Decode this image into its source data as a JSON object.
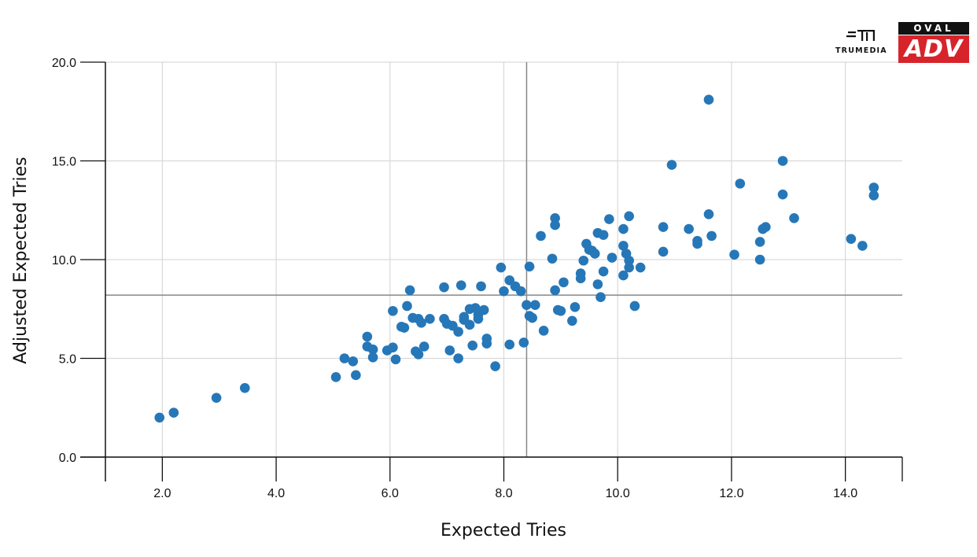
{
  "logos": {
    "trumedia": "TRUMEDIA",
    "oval_top": "OVAL",
    "oval_bottom": "ADV"
  },
  "colors": {
    "point": "#2677b8",
    "grid": "#d9d9d9",
    "reference_line": "#888888",
    "axis": "#111111",
    "adv_red": "#d7242b"
  },
  "chart_data": {
    "type": "scatter",
    "xlabel": "Expected Tries",
    "ylabel": "Adjusted Expected Tries",
    "xlim": [
      1.0,
      15.0
    ],
    "ylim": [
      0.0,
      20.0
    ],
    "x_ticks": [
      "2.0",
      "4.0",
      "6.0",
      "8.0",
      "10.0",
      "12.0",
      "14.0"
    ],
    "y_ticks": [
      "0.0",
      "5.0",
      "10.0",
      "15.0",
      "20.0"
    ],
    "grid": true,
    "reference_lines": {
      "x": 8.4,
      "y": 8.2
    },
    "points": [
      [
        1.95,
        2.0
      ],
      [
        2.2,
        2.25
      ],
      [
        2.95,
        3.0
      ],
      [
        3.45,
        3.5
      ],
      [
        5.05,
        4.05
      ],
      [
        5.2,
        5.0
      ],
      [
        5.35,
        4.85
      ],
      [
        5.4,
        4.15
      ],
      [
        5.6,
        6.1
      ],
      [
        5.6,
        5.6
      ],
      [
        5.7,
        5.05
      ],
      [
        5.7,
        5.45
      ],
      [
        5.95,
        5.4
      ],
      [
        6.05,
        5.55
      ],
      [
        6.05,
        7.4
      ],
      [
        6.1,
        4.95
      ],
      [
        6.2,
        6.6
      ],
      [
        6.25,
        6.55
      ],
      [
        6.3,
        7.65
      ],
      [
        6.35,
        8.45
      ],
      [
        6.4,
        7.05
      ],
      [
        6.45,
        5.35
      ],
      [
        6.5,
        5.2
      ],
      [
        6.5,
        7.0
      ],
      [
        6.55,
        6.8
      ],
      [
        6.6,
        5.6
      ],
      [
        6.7,
        7.0
      ],
      [
        6.95,
        7.0
      ],
      [
        6.95,
        8.6
      ],
      [
        7.0,
        6.75
      ],
      [
        7.05,
        5.4
      ],
      [
        7.1,
        6.65
      ],
      [
        7.2,
        5.0
      ],
      [
        7.2,
        6.35
      ],
      [
        7.25,
        8.7
      ],
      [
        7.3,
        6.95
      ],
      [
        7.3,
        7.1
      ],
      [
        7.4,
        7.5
      ],
      [
        7.4,
        6.7
      ],
      [
        7.45,
        5.65
      ],
      [
        7.5,
        7.55
      ],
      [
        7.55,
        7.0
      ],
      [
        7.55,
        7.2
      ],
      [
        7.6,
        8.65
      ],
      [
        7.65,
        7.45
      ],
      [
        7.7,
        5.75
      ],
      [
        7.7,
        6.0
      ],
      [
        7.85,
        4.6
      ],
      [
        7.95,
        9.6
      ],
      [
        8.0,
        8.4
      ],
      [
        8.1,
        8.95
      ],
      [
        8.1,
        5.7
      ],
      [
        8.2,
        8.65
      ],
      [
        8.3,
        8.4
      ],
      [
        8.35,
        5.8
      ],
      [
        8.45,
        9.65
      ],
      [
        8.4,
        7.7
      ],
      [
        8.45,
        7.15
      ],
      [
        8.5,
        7.05
      ],
      [
        8.55,
        7.7
      ],
      [
        8.65,
        11.2
      ],
      [
        8.7,
        6.4
      ],
      [
        8.85,
        10.05
      ],
      [
        8.9,
        11.75
      ],
      [
        8.9,
        12.1
      ],
      [
        8.9,
        8.45
      ],
      [
        8.95,
        7.45
      ],
      [
        9.0,
        7.4
      ],
      [
        9.05,
        8.85
      ],
      [
        9.2,
        6.9
      ],
      [
        9.25,
        7.6
      ],
      [
        9.35,
        9.3
      ],
      [
        9.35,
        9.05
      ],
      [
        9.4,
        9.95
      ],
      [
        9.45,
        10.8
      ],
      [
        9.5,
        10.5
      ],
      [
        9.55,
        10.45
      ],
      [
        9.6,
        10.3
      ],
      [
        9.65,
        11.35
      ],
      [
        9.65,
        8.75
      ],
      [
        9.7,
        8.1
      ],
      [
        9.75,
        9.4
      ],
      [
        9.75,
        11.25
      ],
      [
        9.85,
        12.05
      ],
      [
        9.9,
        10.1
      ],
      [
        10.1,
        10.7
      ],
      [
        10.1,
        11.55
      ],
      [
        10.1,
        9.2
      ],
      [
        10.15,
        10.3
      ],
      [
        10.2,
        12.2
      ],
      [
        10.2,
        9.95
      ],
      [
        10.2,
        9.6
      ],
      [
        10.3,
        7.65
      ],
      [
        10.4,
        9.6
      ],
      [
        10.8,
        10.4
      ],
      [
        10.8,
        11.65
      ],
      [
        10.95,
        14.8
      ],
      [
        11.25,
        11.55
      ],
      [
        11.4,
        10.95
      ],
      [
        11.4,
        10.8
      ],
      [
        11.6,
        18.1
      ],
      [
        11.6,
        12.3
      ],
      [
        11.65,
        11.2
      ],
      [
        12.05,
        10.25
      ],
      [
        12.15,
        13.85
      ],
      [
        12.5,
        10.0
      ],
      [
        12.5,
        10.9
      ],
      [
        12.55,
        11.55
      ],
      [
        12.6,
        11.65
      ],
      [
        12.9,
        13.3
      ],
      [
        12.9,
        15.0
      ],
      [
        13.1,
        12.1
      ],
      [
        14.1,
        11.05
      ],
      [
        14.3,
        10.7
      ],
      [
        14.5,
        13.25
      ],
      [
        14.5,
        13.65
      ]
    ]
  }
}
